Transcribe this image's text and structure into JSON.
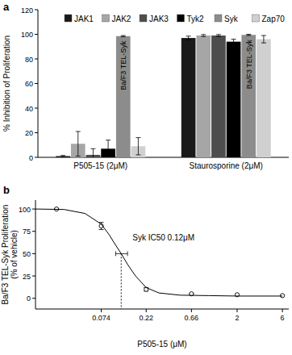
{
  "chart_data": [
    {
      "panel": "a",
      "type": "bar",
      "ylabel": "% Inhibition of Proliferation",
      "categories": [
        "P505-15 (2μM)",
        "Staurosporine (2μM)"
      ],
      "series": [
        {
          "name": "JAK1",
          "color": "#1a1a1a",
          "values": [
            1,
            97
          ],
          "errors": [
            0.5,
            1.5
          ]
        },
        {
          "name": "JAK2",
          "color": "#a6a6a6",
          "values": [
            11,
            99
          ],
          "errors": [
            10,
            0.8
          ]
        },
        {
          "name": "JAK3",
          "color": "#4d4d4d",
          "values": [
            2,
            99
          ],
          "errors": [
            5,
            0.8
          ]
        },
        {
          "name": "Tyk2",
          "color": "#000000",
          "values": [
            7,
            94
          ],
          "errors": [
            7,
            2
          ]
        },
        {
          "name": "Syk",
          "color": "#8c8c8c",
          "values": [
            98.5,
            99.5
          ],
          "errors": [
            0.5,
            0.5
          ],
          "bar_text": [
            "Ba/F3 TEL-Syk",
            "Ba/F3 TEL-Syk"
          ]
        },
        {
          "name": "Zap70",
          "color": "#d0d0d0",
          "values": [
            9,
            96
          ],
          "errors": [
            7,
            3
          ]
        }
      ],
      "ylim": [
        0,
        120
      ],
      "yticks": [
        0,
        20,
        40,
        60,
        80,
        100,
        120
      ],
      "grid": false,
      "legend": "top"
    },
    {
      "panel": "b",
      "type": "line",
      "log": "x",
      "ylabel": [
        "Ba/F3 TEL-Syk Proliferation",
        "(% of vehicle)"
      ],
      "xlabel": "P505-15 (μM)",
      "series": [
        {
          "type": "scatter",
          "marker": "circle",
          "line_style": "none",
          "color": "#000000",
          "x": [
            0.025,
            0.074,
            0.22,
            0.66,
            2,
            6
          ],
          "values": [
            100,
            81,
            10,
            5,
            4,
            3
          ],
          "errors": [
            0.5,
            4,
            2,
            0.5,
            0.5,
            0.5
          ]
        },
        {
          "type": "line",
          "marker": "none",
          "line_style": "solid",
          "color": "#000000",
          "x": [
            0.015,
            0.03,
            0.05,
            0.074,
            0.09,
            0.1,
            0.12,
            0.14,
            0.17,
            0.22,
            0.3,
            0.5,
            1,
            2,
            6
          ],
          "values": [
            100,
            99.5,
            95,
            83,
            71,
            63,
            50,
            38,
            25,
            12,
            6,
            3.5,
            3,
            2.5,
            2.5
          ]
        }
      ],
      "xlim": [
        0.015,
        7
      ],
      "xticks": [
        0.074,
        0.22,
        0.66,
        2,
        6
      ],
      "ylim": [
        -12,
        110
      ],
      "yticks": [
        0,
        25,
        50,
        75,
        100
      ],
      "grid": false,
      "annotations": [
        {
          "text": "Syk IC50 0.12μM",
          "x": 0.12,
          "y": 50,
          "x_err": [
            0.105,
            0.14
          ]
        }
      ]
    }
  ]
}
